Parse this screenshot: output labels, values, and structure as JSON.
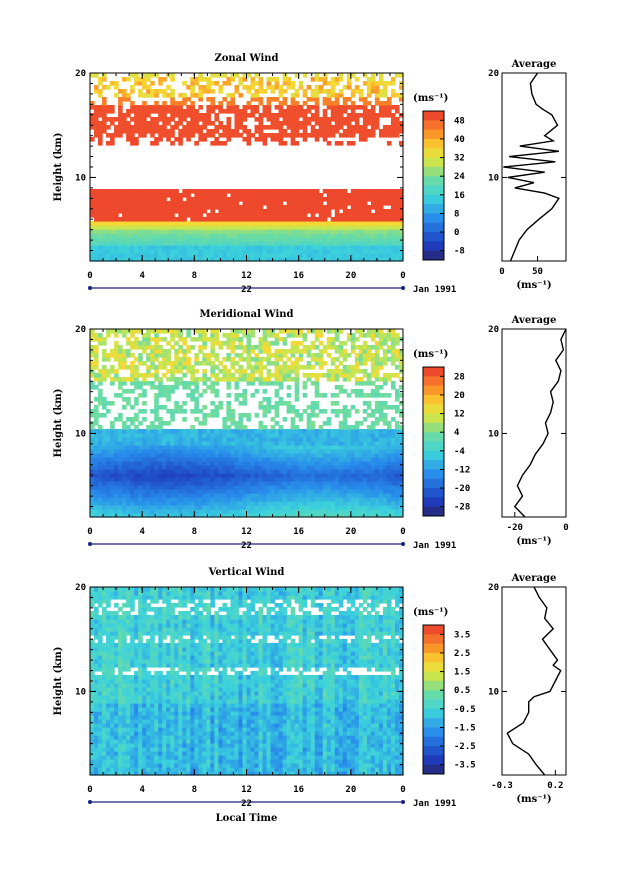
{
  "chart_data": [
    {
      "type": "heatmap",
      "title": "Zonal Wind",
      "ylabel": "Height (km)",
      "xlim": [
        0,
        24
      ],
      "ylim": [
        2,
        20
      ],
      "xticks": [
        "0",
        "4",
        "8",
        "12",
        "16",
        "20",
        "0"
      ],
      "yticks": [
        "20",
        "10"
      ],
      "date_label": "Jan 1991",
      "day_label": "22",
      "units": "(ms⁻¹)",
      "colorbar_ticks": [
        "48",
        "40",
        "32",
        "24",
        "16",
        "8",
        "0",
        "-8"
      ],
      "colorbar_range": [
        -12,
        52
      ],
      "profile": {
        "title": "Average",
        "xticks": [
          "0",
          "50"
        ],
        "xlim": [
          0,
          90
        ],
        "xlabel": "(ms⁻¹)",
        "yticks": [
          "20",
          "10"
        ],
        "height_km": [
          2,
          3,
          4,
          5,
          6,
          7,
          8,
          8.5,
          9,
          9.5,
          10,
          10.5,
          11,
          11.5,
          12,
          12.5,
          13,
          13.5,
          14,
          15,
          16,
          16.5,
          17,
          18,
          19,
          20
        ],
        "values": [
          12,
          18,
          24,
          35,
          52,
          70,
          80,
          60,
          18,
          45,
          8,
          60,
          2,
          75,
          10,
          80,
          25,
          72,
          60,
          78,
          70,
          58,
          48,
          42,
          40,
          50
        ]
      }
    },
    {
      "type": "heatmap",
      "title": "Meridional Wind",
      "ylabel": "Height (km)",
      "xlim": [
        0,
        24
      ],
      "ylim": [
        2,
        20
      ],
      "xticks": [
        "0",
        "4",
        "8",
        "12",
        "16",
        "20",
        "0"
      ],
      "yticks": [
        "20",
        "10"
      ],
      "date_label": "Jan 1991",
      "day_label": "22",
      "units": "(ms⁻¹)",
      "colorbar_ticks": [
        "28",
        "20",
        "12",
        "4",
        "-4",
        "-12",
        "-20",
        "-28"
      ],
      "colorbar_range": [
        -32,
        32
      ],
      "profile": {
        "title": "Average",
        "xticks": [
          "-20",
          "0"
        ],
        "xlim": [
          -25,
          0
        ],
        "xlabel": "(ms⁻¹)",
        "yticks": [
          "20",
          "10"
        ],
        "height_km": [
          2,
          3,
          4,
          5,
          6,
          7,
          8,
          9,
          10,
          11,
          12,
          13,
          14,
          15,
          16,
          17,
          18,
          19,
          20
        ],
        "values": [
          -16,
          -20,
          -17,
          -19,
          -17,
          -14,
          -12,
          -9,
          -7,
          -8,
          -6,
          -5,
          -6,
          -3,
          -2,
          -4,
          -1,
          -2,
          0
        ]
      }
    },
    {
      "type": "heatmap",
      "title": "Vertical Wind",
      "ylabel": "Height (km)",
      "xlabel": "Local Time",
      "xlim": [
        0,
        24
      ],
      "ylim": [
        2,
        20
      ],
      "xticks": [
        "0",
        "4",
        "8",
        "12",
        "16",
        "20",
        "0"
      ],
      "yticks": [
        "20",
        "10"
      ],
      "date_label": "Jan 1991",
      "day_label": "22",
      "units": "(ms⁻¹)",
      "colorbar_ticks": [
        "3.5",
        "2.5",
        "1.5",
        "0.5",
        "-0.5",
        "-1.5",
        "-2.5",
        "-3.5"
      ],
      "colorbar_range": [
        -4,
        4
      ],
      "profile": {
        "title": "Average",
        "xticks": [
          "-0.3",
          "0.2"
        ],
        "xlim": [
          -0.3,
          0.3
        ],
        "xlabel": "(ms⁻¹)",
        "yticks": [
          "20",
          "10"
        ],
        "height_km": [
          2,
          3,
          4,
          5,
          6,
          7,
          8,
          9,
          9.5,
          10,
          11,
          12,
          12.5,
          13,
          14,
          15,
          16,
          17,
          18,
          19,
          20
        ],
        "values": [
          0.1,
          0.02,
          -0.05,
          -0.2,
          -0.25,
          -0.1,
          -0.05,
          -0.05,
          0.0,
          0.15,
          0.2,
          0.25,
          0.18,
          0.22,
          0.15,
          0.08,
          0.18,
          0.1,
          0.12,
          0.05,
          0.0
        ]
      }
    }
  ]
}
